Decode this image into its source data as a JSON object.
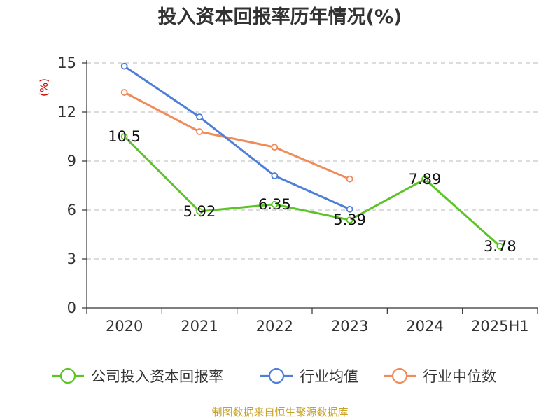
{
  "chart_data": {
    "type": "line",
    "title": "投入资本回报率历年情况(%)",
    "ylabel": "(%)",
    "categories": [
      "2020",
      "2021",
      "2022",
      "2023",
      "2024",
      "2025H1"
    ],
    "ylim": [
      0,
      15
    ],
    "yticks": [
      0,
      3,
      6,
      9,
      12,
      15
    ],
    "grid": true,
    "legend_position": "bottom",
    "series": [
      {
        "name": "公司投入资本回报率",
        "color": "#5cc424",
        "values": [
          10.5,
          5.92,
          6.35,
          5.39,
          7.89,
          3.78
        ],
        "labels": [
          "10.5",
          "5.92",
          "6.35",
          "5.39",
          "7.89",
          "3.78"
        ]
      },
      {
        "name": "行业均值",
        "color": "#4e7fd8",
        "values": [
          14.8,
          11.7,
          8.1,
          6.05,
          null,
          null
        ]
      },
      {
        "name": "行业中位数",
        "color": "#f08b5a",
        "values": [
          13.2,
          10.8,
          9.85,
          7.9,
          null,
          null
        ]
      }
    ]
  },
  "source": "制图数据来自恒生聚源数据库"
}
